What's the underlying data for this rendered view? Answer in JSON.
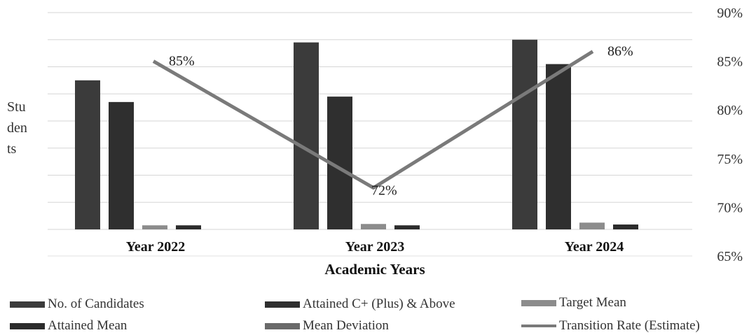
{
  "chart_data": {
    "type": "bar",
    "xlabel": "Academic Years",
    "ylabel": "Students",
    "ylabel_lines": [
      "Stu",
      "den",
      "ts"
    ],
    "categories": [
      "Year 2022",
      "Year 2023",
      "Year 2024"
    ],
    "series": [
      {
        "name": "No. of Candidates",
        "type": "bar",
        "axis": "left",
        "color": "#3b3b3b",
        "values": [
          55,
          69,
          70
        ]
      },
      {
        "name": "Attained C+ (Plus) & Above",
        "type": "bar",
        "axis": "left",
        "color": "#2f2f2f",
        "values": [
          47,
          49,
          61
        ]
      },
      {
        "name": "Target Mean",
        "type": "bar",
        "axis": "left",
        "color": "#8c8c8c",
        "values": [
          1.5,
          2,
          2.5
        ]
      },
      {
        "name": "Attained Mean",
        "type": "bar",
        "axis": "left",
        "color": "#2c2c2c",
        "values": [
          1.5,
          1.5,
          1.8
        ]
      },
      {
        "name": "Mean Deviation",
        "type": "bar",
        "axis": "left",
        "color": "#6a6a6a",
        "values": [
          0,
          0,
          0
        ]
      },
      {
        "name": "Transition Rate (Estimate)",
        "type": "line",
        "axis": "right",
        "color": "#7a7a7a",
        "values": [
          85,
          72,
          86
        ],
        "labels": [
          "85%",
          "72%",
          "86%"
        ]
      }
    ],
    "y_left_range": [
      0,
      80
    ],
    "y_right_range": [
      65,
      90
    ],
    "y_right_ticks": [
      "65%",
      "70%",
      "75%",
      "80%",
      "85%",
      "90%"
    ],
    "grid": true,
    "legend_position": "bottom"
  },
  "legend": {
    "items": [
      {
        "label": "No. of Candidates",
        "color": "#3b3b3b",
        "kind": "bar"
      },
      {
        "label": "Attained C+ (Plus) & Above",
        "color": "#2f2f2f",
        "kind": "bar"
      },
      {
        "label": "Target Mean",
        "color": "#8c8c8c",
        "kind": "bar"
      },
      {
        "label": "Attained Mean",
        "color": "#2c2c2c",
        "kind": "bar"
      },
      {
        "label": "Mean Deviation",
        "color": "#6a6a6a",
        "kind": "bar"
      },
      {
        "label": "Transition Rate (Estimate)",
        "color": "#7a7a7a",
        "kind": "line"
      }
    ]
  }
}
